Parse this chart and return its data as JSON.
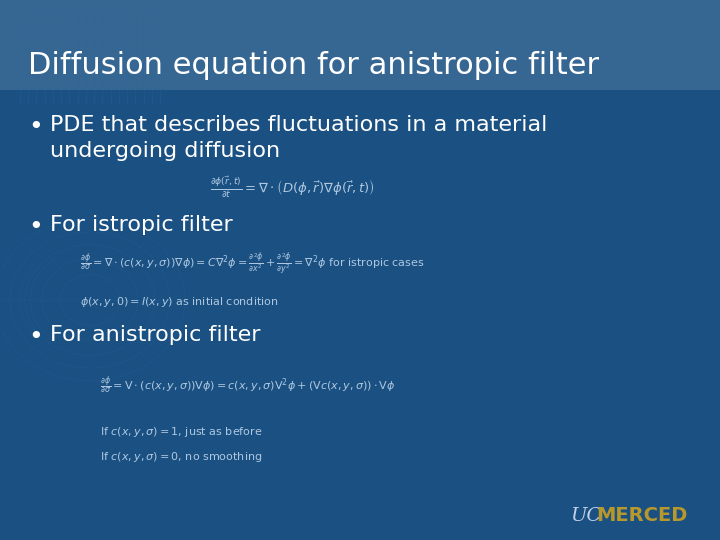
{
  "bg_color": "#1a5082",
  "title": "Diffusion equation for anistropic filter",
  "title_color": "#ffffff",
  "title_fontsize": 22,
  "bullet_color": "#ffffff",
  "bullet_fontsize": 16,
  "eq_color": "#afc8e0",
  "eq_fontsize": 9.5,
  "small_eq_fontsize": 8,
  "eq1": "$\\frac{\\partial\\phi(\\vec{r},t)}{\\partial t} = \\nabla \\cdot \\left(D(\\phi,\\vec{r})\\nabla\\phi(\\vec{r},t)\\right)$",
  "eq2": "$\\frac{\\partial\\phi}{\\partial\\sigma} = \\nabla \\cdot (c(x,y,\\sigma))\\nabla\\phi) = C\\nabla^2\\phi = \\frac{\\partial^2\\phi}{\\partial x^2} + \\frac{\\partial^2\\phi}{\\partial y^2} = \\nabla^2\\phi$ for istropic cases",
  "eq3": "$\\phi(x,y,0) = I(x,y)$ as initial condition",
  "eq4": "$\\frac{\\partial\\phi}{\\partial\\sigma} = \\mathrm{V} \\cdot (c(x,y,\\sigma))\\mathrm{V}\\phi) = c(x,y,\\sigma)\\mathrm{V}^2\\phi + (\\mathrm{V}c(x,y,\\sigma)) \\cdot \\mathrm{V}\\phi$",
  "eq5": "If $c(x, y, \\sigma) = 1$, just as before",
  "eq6": "If $c(x, y, \\sigma) = 0$, no smoothing",
  "uc_color_uc": "#c0d0e8",
  "uc_color_merced": "#b8982a"
}
